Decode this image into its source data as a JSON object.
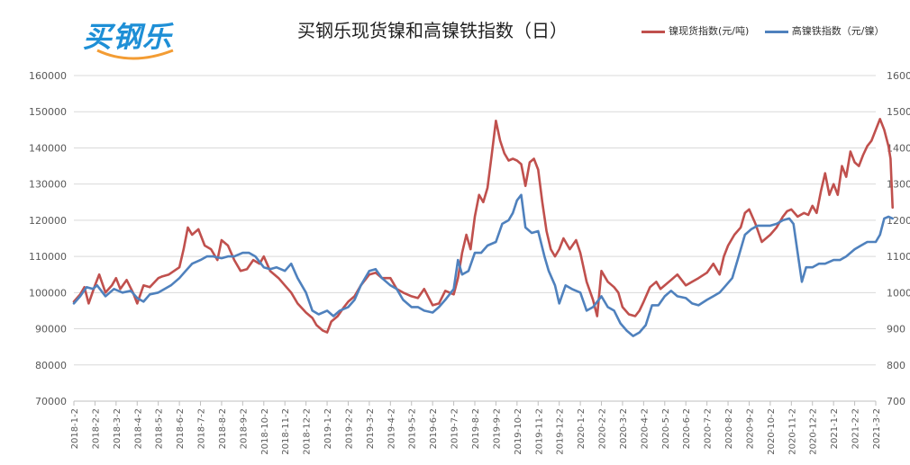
{
  "header": {
    "logo_text": "买钢乐",
    "title": "买钢乐现货镍和高镍铁指数（日）"
  },
  "colors": {
    "series1": "#c0504d",
    "series2": "#4f81bd",
    "logo_blue": "#1e8fd6",
    "logo_orange": "#f39c33"
  },
  "chart_data": {
    "type": "line",
    "legend_position": "top-right",
    "grid": true,
    "y_left": {
      "min": 70000,
      "max": 160000,
      "ticks": [
        "70000",
        "80000",
        "90000",
        "100000",
        "110000",
        "120000",
        "130000",
        "140000",
        "150000",
        "160000"
      ]
    },
    "y_right": {
      "min": 700,
      "max": 1600,
      "ticks": [
        "700",
        "800",
        "900",
        "1000",
        "1100",
        "1200",
        "1300",
        "1400",
        "1500",
        "1600"
      ]
    },
    "x_ticks": [
      "2018-1-2",
      "2018-2-2",
      "2018-3-2",
      "2018-4-2",
      "2018-5-2",
      "2018-6-2",
      "2018-7-2",
      "2018-8-2",
      "2018-9-2",
      "2018-10-2",
      "2018-11-2",
      "2018-12-2",
      "2019-1-2",
      "2019-2-2",
      "2019-3-2",
      "2019-4-2",
      "2019-5-2",
      "2019-6-2",
      "2019-7-2",
      "2019-8-2",
      "2019-9-2",
      "2019-10-2",
      "2019-11-2",
      "2019-12-2",
      "2020-1-2",
      "2020-2-2",
      "2020-3-2",
      "2020-4-2",
      "2020-5-2",
      "2020-6-2",
      "2020-7-2",
      "2020-8-2",
      "2020-9-2",
      "2020-10-2",
      "2020-11-2",
      "2020-12-2",
      "2021-1-2",
      "2021-2-2",
      "2021-3-2"
    ],
    "series": [
      {
        "name": "镍现货指数(元/吨)",
        "axis": "left",
        "points": [
          [
            0,
            97500
          ],
          [
            0.3,
            99500
          ],
          [
            0.5,
            101500
          ],
          [
            0.7,
            97000
          ],
          [
            1,
            102000
          ],
          [
            1.2,
            105000
          ],
          [
            1.5,
            100000
          ],
          [
            1.8,
            102000
          ],
          [
            2,
            104000
          ],
          [
            2.2,
            101000
          ],
          [
            2.5,
            103500
          ],
          [
            2.8,
            100000
          ],
          [
            3,
            97000
          ],
          [
            3.3,
            102000
          ],
          [
            3.6,
            101500
          ],
          [
            4,
            104000
          ],
          [
            4.2,
            104500
          ],
          [
            4.5,
            105000
          ],
          [
            5,
            107000
          ],
          [
            5.2,
            112000
          ],
          [
            5.4,
            118000
          ],
          [
            5.6,
            116000
          ],
          [
            5.9,
            117500
          ],
          [
            6.2,
            113000
          ],
          [
            6.5,
            112000
          ],
          [
            6.8,
            109000
          ],
          [
            7,
            114500
          ],
          [
            7.3,
            113000
          ],
          [
            7.6,
            109000
          ],
          [
            7.9,
            106000
          ],
          [
            8.2,
            106500
          ],
          [
            8.5,
            109000
          ],
          [
            8.8,
            108000
          ],
          [
            9,
            110000
          ],
          [
            9.3,
            106000
          ],
          [
            9.7,
            104000
          ],
          [
            10,
            102000
          ],
          [
            10.3,
            100000
          ],
          [
            10.6,
            97000
          ],
          [
            11,
            94500
          ],
          [
            11.3,
            93000
          ],
          [
            11.5,
            91000
          ],
          [
            11.8,
            89500
          ],
          [
            12,
            89000
          ],
          [
            12.2,
            92000
          ],
          [
            12.5,
            93500
          ],
          [
            12.8,
            96000
          ],
          [
            13,
            97500
          ],
          [
            13.3,
            99000
          ],
          [
            13.6,
            102000
          ],
          [
            14,
            105000
          ],
          [
            14.3,
            105500
          ],
          [
            14.6,
            104000
          ],
          [
            15,
            104000
          ],
          [
            15.3,
            101000
          ],
          [
            15.6,
            100000
          ],
          [
            16,
            99000
          ],
          [
            16.3,
            98500
          ],
          [
            16.6,
            101000
          ],
          [
            17,
            96500
          ],
          [
            17.3,
            97000
          ],
          [
            17.6,
            100500
          ],
          [
            18,
            99500
          ],
          [
            18.2,
            104000
          ],
          [
            18.4,
            111000
          ],
          [
            18.6,
            116000
          ],
          [
            18.8,
            112000
          ],
          [
            19,
            121000
          ],
          [
            19.2,
            127000
          ],
          [
            19.4,
            125000
          ],
          [
            19.6,
            129000
          ],
          [
            19.8,
            138000
          ],
          [
            20,
            147500
          ],
          [
            20.2,
            142000
          ],
          [
            20.4,
            138500
          ],
          [
            20.6,
            136500
          ],
          [
            20.8,
            137000
          ],
          [
            21,
            136500
          ],
          [
            21.2,
            135500
          ],
          [
            21.4,
            129500
          ],
          [
            21.6,
            136000
          ],
          [
            21.8,
            137000
          ],
          [
            22,
            134000
          ],
          [
            22.2,
            125000
          ],
          [
            22.4,
            117000
          ],
          [
            22.6,
            112000
          ],
          [
            22.8,
            110000
          ],
          [
            23,
            112000
          ],
          [
            23.2,
            115000
          ],
          [
            23.5,
            112000
          ],
          [
            23.8,
            114500
          ],
          [
            24,
            111000
          ],
          [
            24.3,
            103000
          ],
          [
            24.6,
            98000
          ],
          [
            24.8,
            93500
          ],
          [
            25,
            106000
          ],
          [
            25.3,
            103000
          ],
          [
            25.6,
            101500
          ],
          [
            25.8,
            100000
          ],
          [
            26,
            96000
          ],
          [
            26.3,
            94000
          ],
          [
            26.6,
            93500
          ],
          [
            26.8,
            95000
          ],
          [
            27,
            97500
          ],
          [
            27.3,
            101500
          ],
          [
            27.6,
            103000
          ],
          [
            27.8,
            101000
          ],
          [
            28,
            102000
          ],
          [
            28.3,
            103500
          ],
          [
            28.6,
            105000
          ],
          [
            29,
            102000
          ],
          [
            29.3,
            103000
          ],
          [
            29.6,
            104000
          ],
          [
            30,
            105500
          ],
          [
            30.3,
            108000
          ],
          [
            30.6,
            105000
          ],
          [
            30.8,
            110000
          ],
          [
            31,
            113000
          ],
          [
            31.3,
            116000
          ],
          [
            31.6,
            118000
          ],
          [
            31.8,
            122000
          ],
          [
            32,
            123000
          ],
          [
            32.3,
            119000
          ],
          [
            32.6,
            114000
          ],
          [
            33,
            116000
          ],
          [
            33.3,
            118000
          ],
          [
            33.6,
            121000
          ],
          [
            33.8,
            122500
          ],
          [
            34,
            123000
          ],
          [
            34.3,
            121000
          ],
          [
            34.6,
            122000
          ],
          [
            34.8,
            121500
          ],
          [
            35,
            124000
          ],
          [
            35.2,
            122000
          ],
          [
            35.4,
            128000
          ],
          [
            35.6,
            133000
          ],
          [
            35.8,
            127000
          ],
          [
            36,
            130000
          ],
          [
            36.2,
            127000
          ],
          [
            36.4,
            135000
          ],
          [
            36.6,
            132000
          ],
          [
            36.8,
            139000
          ],
          [
            37,
            136000
          ],
          [
            37.2,
            135000
          ],
          [
            37.4,
            138000
          ],
          [
            37.6,
            140500
          ],
          [
            37.8,
            142000
          ],
          [
            38,
            145000
          ],
          [
            38.2,
            148000
          ],
          [
            38.4,
            145000
          ],
          [
            38.6,
            140500
          ],
          [
            38.7,
            137000
          ],
          [
            38.8,
            123500
          ]
        ]
      },
      {
        "name": "高镍铁指数（元/镍）",
        "axis": "right",
        "points": [
          [
            0,
            970
          ],
          [
            0.3,
            990
          ],
          [
            0.6,
            1015
          ],
          [
            0.9,
            1010
          ],
          [
            1.1,
            1020
          ],
          [
            1.5,
            990
          ],
          [
            1.9,
            1010
          ],
          [
            2.3,
            1000
          ],
          [
            2.7,
            1005
          ],
          [
            3,
            985
          ],
          [
            3.3,
            975
          ],
          [
            3.6,
            995
          ],
          [
            4,
            1000
          ],
          [
            4.3,
            1010
          ],
          [
            4.6,
            1020
          ],
          [
            5,
            1040
          ],
          [
            5.3,
            1060
          ],
          [
            5.6,
            1080
          ],
          [
            6,
            1090
          ],
          [
            6.3,
            1100
          ],
          [
            6.6,
            1100
          ],
          [
            7,
            1095
          ],
          [
            7.3,
            1100
          ],
          [
            7.6,
            1100
          ],
          [
            8,
            1110
          ],
          [
            8.3,
            1110
          ],
          [
            8.6,
            1100
          ],
          [
            9,
            1070
          ],
          [
            9.3,
            1065
          ],
          [
            9.6,
            1070
          ],
          [
            10,
            1060
          ],
          [
            10.3,
            1080
          ],
          [
            10.6,
            1040
          ],
          [
            11,
            1000
          ],
          [
            11.3,
            950
          ],
          [
            11.6,
            940
          ],
          [
            12,
            950
          ],
          [
            12.3,
            935
          ],
          [
            12.6,
            950
          ],
          [
            13,
            960
          ],
          [
            13.3,
            980
          ],
          [
            13.6,
            1020
          ],
          [
            14,
            1060
          ],
          [
            14.3,
            1065
          ],
          [
            14.6,
            1040
          ],
          [
            15,
            1020
          ],
          [
            15.3,
            1010
          ],
          [
            15.6,
            980
          ],
          [
            16,
            960
          ],
          [
            16.3,
            960
          ],
          [
            16.6,
            950
          ],
          [
            17,
            945
          ],
          [
            17.3,
            960
          ],
          [
            17.6,
            980
          ],
          [
            18,
            1010
          ],
          [
            18.2,
            1090
          ],
          [
            18.4,
            1050
          ],
          [
            18.7,
            1060
          ],
          [
            19,
            1110
          ],
          [
            19.3,
            1110
          ],
          [
            19.6,
            1130
          ],
          [
            20,
            1140
          ],
          [
            20.3,
            1190
          ],
          [
            20.6,
            1200
          ],
          [
            20.8,
            1220
          ],
          [
            21,
            1255
          ],
          [
            21.2,
            1270
          ],
          [
            21.4,
            1180
          ],
          [
            21.7,
            1165
          ],
          [
            22,
            1170
          ],
          [
            22.3,
            1100
          ],
          [
            22.5,
            1060
          ],
          [
            22.8,
            1020
          ],
          [
            23,
            970
          ],
          [
            23.3,
            1020
          ],
          [
            23.6,
            1010
          ],
          [
            24,
            1000
          ],
          [
            24.3,
            950
          ],
          [
            24.6,
            960
          ],
          [
            25,
            990
          ],
          [
            25.3,
            960
          ],
          [
            25.6,
            950
          ],
          [
            25.9,
            915
          ],
          [
            26.2,
            895
          ],
          [
            26.5,
            880
          ],
          [
            26.8,
            890
          ],
          [
            27.1,
            910
          ],
          [
            27.4,
            965
          ],
          [
            27.7,
            965
          ],
          [
            28,
            990
          ],
          [
            28.3,
            1005
          ],
          [
            28.6,
            990
          ],
          [
            29,
            985
          ],
          [
            29.3,
            970
          ],
          [
            29.6,
            965
          ],
          [
            30,
            980
          ],
          [
            30.3,
            990
          ],
          [
            30.6,
            1000
          ],
          [
            30.9,
            1020
          ],
          [
            31.2,
            1040
          ],
          [
            31.5,
            1100
          ],
          [
            31.8,
            1160
          ],
          [
            32.1,
            1175
          ],
          [
            32.4,
            1185
          ],
          [
            32.7,
            1185
          ],
          [
            33,
            1185
          ],
          [
            33.3,
            1190
          ],
          [
            33.6,
            1200
          ],
          [
            33.9,
            1205
          ],
          [
            34.1,
            1190
          ],
          [
            34.3,
            1110
          ],
          [
            34.5,
            1030
          ],
          [
            34.7,
            1070
          ],
          [
            35,
            1070
          ],
          [
            35.3,
            1080
          ],
          [
            35.6,
            1080
          ],
          [
            36,
            1090
          ],
          [
            36.3,
            1090
          ],
          [
            36.6,
            1100
          ],
          [
            37,
            1120
          ],
          [
            37.3,
            1130
          ],
          [
            37.6,
            1140
          ],
          [
            38,
            1140
          ],
          [
            38.2,
            1160
          ],
          [
            38.4,
            1205
          ],
          [
            38.6,
            1210
          ],
          [
            38.8,
            1205
          ]
        ]
      }
    ]
  }
}
